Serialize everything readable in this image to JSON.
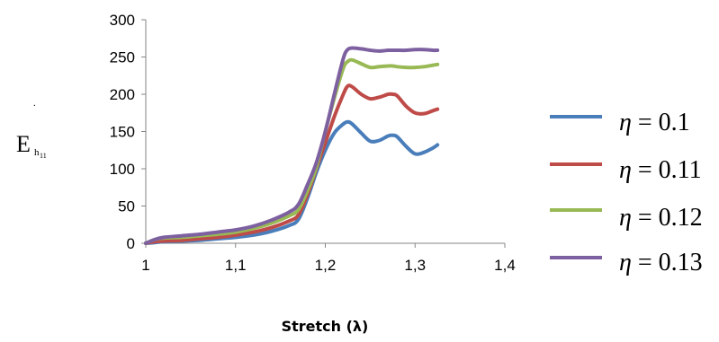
{
  "chart_data": {
    "type": "line",
    "xlabel": "Stretch (λ)",
    "ylabel": {
      "main": "E",
      "sub": "h",
      "subsub": "11"
    },
    "ylabel_dot": ".",
    "xlim": [
      1,
      1.4
    ],
    "ylim": [
      0,
      300
    ],
    "x_ticks": [
      1,
      1.1,
      1.2,
      1.3,
      1.4
    ],
    "x_tick_labels": [
      "1",
      "1,1",
      "1,2",
      "1,3",
      "1,4"
    ],
    "y_ticks": [
      0,
      50,
      100,
      150,
      200,
      250,
      300
    ],
    "y_tick_labels": [
      "0",
      "50",
      "100",
      "150",
      "200",
      "250",
      "300"
    ],
    "grid": false,
    "legend_position": "right",
    "x": [
      1.0,
      1.01,
      1.02,
      1.04,
      1.06,
      1.08,
      1.1,
      1.12,
      1.14,
      1.16,
      1.17,
      1.18,
      1.19,
      1.2,
      1.21,
      1.22,
      1.225,
      1.23,
      1.24,
      1.25,
      1.26,
      1.27,
      1.275,
      1.28,
      1.29,
      1.3,
      1.31,
      1.32,
      1.325
    ],
    "series": [
      {
        "name": "η = 0.1",
        "legend_eta": "η",
        "legend_rest": " = 0.1",
        "color": "#4a7ebb",
        "values": [
          0,
          1,
          2,
          3,
          4,
          6,
          8,
          11,
          16,
          24,
          32,
          60,
          95,
          125,
          148,
          160,
          163,
          160,
          148,
          137,
          138,
          144,
          145,
          143,
          130,
          120,
          122,
          128,
          132
        ]
      },
      {
        "name": "η = 0.11",
        "legend_eta": "η",
        "legend_rest": " = 0.11",
        "color": "#be4b48",
        "values": [
          0,
          2,
          3,
          4,
          6,
          8,
          11,
          15,
          21,
          30,
          38,
          65,
          100,
          135,
          170,
          200,
          211,
          210,
          200,
          194,
          196,
          200,
          200,
          198,
          184,
          175,
          174,
          178,
          180
        ]
      },
      {
        "name": "η = 0.12",
        "legend_eta": "η",
        "legend_rest": " = 0.12",
        "color": "#98b954",
        "values": [
          0,
          5,
          7,
          8,
          10,
          12,
          15,
          20,
          27,
          37,
          45,
          70,
          102,
          150,
          195,
          235,
          244,
          246,
          241,
          236,
          237,
          238,
          238,
          237,
          236,
          236,
          237,
          239,
          240
        ]
      },
      {
        "name": "η = 0.13",
        "legend_eta": "η",
        "legend_rest": " = 0.13",
        "color": "#7d60a0",
        "values": [
          0,
          5,
          8,
          10,
          12,
          15,
          18,
          23,
          31,
          42,
          52,
          78,
          108,
          150,
          200,
          248,
          260,
          262,
          261,
          259,
          258,
          259,
          259,
          259,
          259,
          260,
          260,
          259,
          259
        ]
      }
    ]
  }
}
